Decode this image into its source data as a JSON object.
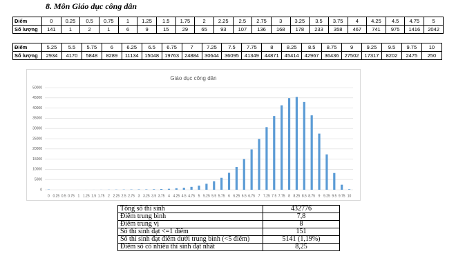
{
  "title": "8. Môn Giáo dục công dân",
  "score_tables": [
    {
      "row_labels": [
        "Điểm",
        "Số lượng"
      ],
      "scores": [
        0,
        0.25,
        0.5,
        0.75,
        1,
        1.25,
        1.5,
        1.75,
        2,
        2.25,
        2.5,
        2.75,
        3,
        3.25,
        3.5,
        3.75,
        4,
        4.25,
        4.5,
        4.75,
        5
      ],
      "counts": [
        141,
        1,
        2,
        1,
        6,
        9,
        15,
        29,
        65,
        93,
        107,
        136,
        168,
        178,
        233,
        358,
        467,
        741,
        975,
        1416,
        2042
      ]
    },
    {
      "row_labels": [
        "Điểm",
        "Số lượng"
      ],
      "scores": [
        5.25,
        5.5,
        5.75,
        6,
        6.25,
        6.5,
        6.75,
        7,
        7.25,
        7.5,
        7.75,
        8,
        8.25,
        8.5,
        8.75,
        9,
        9.25,
        9.5,
        9.75,
        10
      ],
      "counts": [
        2934,
        4170,
        5848,
        8289,
        11134,
        15048,
        19763,
        24884,
        30644,
        36095,
        41349,
        44871,
        45414,
        42967,
        36436,
        27502,
        17317,
        8202,
        2475,
        250
      ]
    }
  ],
  "chart_data": {
    "type": "bar",
    "title": "Giáo dục công dân",
    "categories": [
      0,
      0.25,
      0.5,
      0.75,
      1,
      1.25,
      1.5,
      1.75,
      2,
      2.25,
      2.5,
      2.75,
      3,
      3.25,
      3.5,
      3.75,
      4,
      4.25,
      4.5,
      4.75,
      5,
      5.25,
      5.5,
      5.75,
      6,
      6.25,
      6.5,
      6.75,
      7,
      7.25,
      7.5,
      7.75,
      8,
      8.25,
      8.5,
      8.75,
      9,
      9.25,
      9.5,
      9.75,
      10
    ],
    "values": [
      141,
      1,
      2,
      1,
      6,
      9,
      15,
      29,
      65,
      93,
      107,
      136,
      168,
      178,
      233,
      358,
      467,
      741,
      975,
      1416,
      2042,
      2934,
      4170,
      5848,
      8289,
      11134,
      15048,
      19763,
      24884,
      30644,
      36095,
      41349,
      44871,
      45414,
      42967,
      36436,
      27502,
      17317,
      8202,
      2475,
      250
    ],
    "color": "#5b9bd5",
    "ylim": [
      0,
      50000
    ],
    "yticks": [
      0,
      5000,
      10000,
      15000,
      20000,
      25000,
      30000,
      35000,
      40000,
      45000,
      50000
    ],
    "grid": true
  },
  "summary": {
    "rows": [
      [
        "Tổng số thí sinh",
        "432776"
      ],
      [
        "Điểm trung bình",
        "7,8"
      ],
      [
        "Điểm trung vị",
        "8"
      ],
      [
        "Số thí sinh đạt <=1 điểm",
        "151"
      ],
      [
        "Số thí sinh đạt điểm dưới trung bình (<5 điểm)",
        "5141 (1,19%)"
      ],
      [
        "Điểm số có nhiều thí sinh đạt nhất",
        "8,25"
      ]
    ]
  }
}
